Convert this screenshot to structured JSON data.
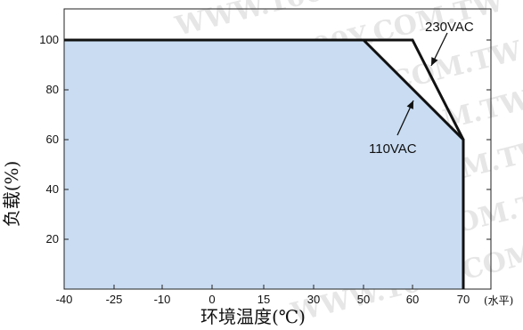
{
  "chart_data": {
    "type": "area",
    "xlabel": "环境温度(℃)",
    "ylabel": "负载(%)",
    "x_unit_note": "(水平)",
    "xlim": [
      -40,
      70
    ],
    "ylim": [
      0,
      110
    ],
    "x_ticks": [
      -40,
      -25,
      -10,
      0,
      15,
      30,
      50,
      60,
      70
    ],
    "x_tick_labels": [
      "-40",
      "-25",
      "-10",
      "0",
      "15",
      "30",
      "50",
      "60",
      "70"
    ],
    "y_ticks": [
      20,
      40,
      60,
      80,
      100
    ],
    "y_tick_labels": [
      "20",
      "40",
      "60",
      "80",
      "100"
    ],
    "grid": false,
    "series": [
      {
        "name": "230VAC",
        "x": [
          -40,
          60,
          70,
          70
        ],
        "y": [
          100,
          100,
          60,
          0
        ]
      },
      {
        "name": "110VAC",
        "x": [
          -40,
          50,
          70,
          70
        ],
        "y": [
          100,
          100,
          60,
          0
        ]
      }
    ],
    "fill_color": "#c9dcf2",
    "line_color": "#111111",
    "watermark": "WWW.100Y.COM.TW"
  }
}
